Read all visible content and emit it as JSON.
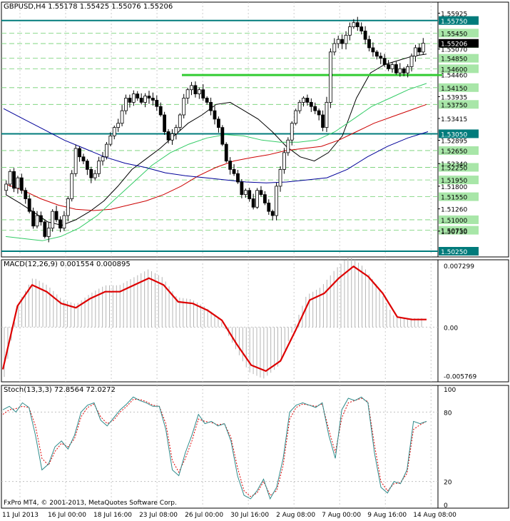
{
  "colors": {
    "background": "#ffffff",
    "border": "#000000",
    "grid": "#c0c0c0",
    "bull_candle": "#ffffff",
    "bear_candle": "#000000",
    "level_line": "#6fcf6f",
    "level_label_bg": "#a8e6a8",
    "teal_line": "#007b7b",
    "resistance": "#33cc33",
    "ma_black": "#000000",
    "ma_red": "#cc0000",
    "ma_green": "#33cc66",
    "ma_blue": "#000099",
    "macd_hist": "#b4b4b4",
    "macd_signal": "#dd0000",
    "stoch_main": "#2e8b8b",
    "stoch_signal": "#dd0000",
    "current_price_bg": "#000000",
    "current_price_fg": "#ffffff"
  },
  "main": {
    "header": "GBPUSD,H4  1.55178 1.55425 1.55076 1.55206",
    "price_axis_labels": [
      "1.55925",
      "1.55070",
      "1.54460",
      "1.53935",
      "1.53415",
      "1.52895",
      "1.52340",
      "1.51800",
      "1.51260",
      "1.50730"
    ],
    "levels": [
      "1.55750",
      "1.55450",
      "1.55200",
      "1.54850",
      "1.54600",
      "1.54150",
      "1.53750",
      "1.53050",
      "1.52650",
      "1.52250",
      "1.51950",
      "1.51550",
      "1.51000",
      "1.50750",
      "1.50250"
    ],
    "highlighted_levels": [
      "1.55750",
      "1.53050",
      "1.50250"
    ],
    "current_price": "1.55206",
    "resistance_level": 1.5445
  },
  "macd": {
    "header": "MACD(12,26,9) 0.001554 0.000895",
    "axis_labels": [
      "0.007299",
      "0.00",
      "-0.005769"
    ]
  },
  "stoch": {
    "header": "Stoch(13,3,3) 72.8564 72.0272",
    "axis_labels": [
      "100",
      "80",
      "20",
      "0"
    ]
  },
  "footer": {
    "copyright": "FxPro MT4, © 2001-2013, MetaQuotes Software Corp."
  },
  "chart_data": {
    "type": "candlestick",
    "symbol": "GBPUSD",
    "timeframe": "H4",
    "x_tick_labels": [
      "11 Jul 2013",
      "16 Jul 00:00",
      "18 Jul 16:00",
      "23 Jul 08:00",
      "26 Jul 00:00",
      "30 Jul 16:00",
      "2 Aug 08:00",
      "7 Aug 00:00",
      "9 Aug 16:00",
      "14 Aug 08:00"
    ],
    "ylim": [
      1.5025,
      1.5595
    ],
    "close": [
      1.5185,
      1.5215,
      1.5175,
      1.52,
      1.517,
      1.515,
      1.512,
      1.5085,
      1.511,
      1.5095,
      1.506,
      1.508,
      1.512,
      1.51,
      1.508,
      1.511,
      1.515,
      1.521,
      1.527,
      1.525,
      1.524,
      1.522,
      1.52,
      1.521,
      1.524,
      1.525,
      1.528,
      1.53,
      1.532,
      1.533,
      1.536,
      1.539,
      1.538,
      1.54,
      1.539,
      1.538,
      1.5395,
      1.539,
      1.5385,
      1.537,
      1.535,
      1.531,
      1.529,
      1.5305,
      1.532,
      1.535,
      1.539,
      1.541,
      1.542,
      1.54,
      1.541,
      1.539,
      1.538,
      1.536,
      1.534,
      1.532,
      1.528,
      1.524,
      1.522,
      1.521,
      1.519,
      1.516,
      1.517,
      1.515,
      1.513,
      1.517,
      1.516,
      1.514,
      1.512,
      1.511,
      1.518,
      1.522,
      1.526,
      1.529,
      1.533,
      1.536,
      1.538,
      1.539,
      1.538,
      1.537,
      1.536,
      1.535,
      1.532,
      1.538,
      1.55,
      1.552,
      1.553,
      1.552,
      1.554,
      1.556,
      1.557,
      1.556,
      1.555,
      1.553,
      1.551,
      1.55,
      1.549,
      1.5485,
      1.547,
      1.546,
      1.547,
      1.545,
      1.546,
      1.545,
      1.5465,
      1.549,
      1.551,
      1.55,
      1.5521
    ],
    "series": [
      {
        "name": "MA black",
        "values": [
          1.516,
          1.514,
          1.5118,
          1.5095,
          1.5087,
          1.51,
          1.512,
          1.5145,
          1.518,
          1.522,
          1.5245,
          1.527,
          1.53,
          1.533,
          1.535,
          1.5375,
          1.538,
          1.536,
          1.534,
          1.531,
          1.5275,
          1.525,
          1.524,
          1.526,
          1.53,
          1.539,
          1.545,
          1.547,
          1.548,
          1.549,
          1.5495
        ]
      },
      {
        "name": "MA red",
        "values": [
          1.5185,
          1.517,
          1.515,
          1.5135,
          1.5125,
          1.5122,
          1.5125,
          1.5135,
          1.5145,
          1.516,
          1.518,
          1.5205,
          1.5225,
          1.524,
          1.5248,
          1.5255,
          1.5265,
          1.527,
          1.5275,
          1.529,
          1.531,
          1.533,
          1.5345,
          1.536,
          1.5375
        ]
      },
      {
        "name": "MA green",
        "values": [
          1.506,
          1.5055,
          1.505,
          1.506,
          1.508,
          1.511,
          1.515,
          1.519,
          1.523,
          1.526,
          1.528,
          1.5295,
          1.5303,
          1.53,
          1.529,
          1.5285,
          1.5285,
          1.529,
          1.531,
          1.534,
          1.537,
          1.539,
          1.541,
          1.5425
        ]
      },
      {
        "name": "MA blue",
        "values": [
          1.5365,
          1.534,
          1.5315,
          1.529,
          1.527,
          1.525,
          1.5235,
          1.5225,
          1.5212,
          1.5205,
          1.52,
          1.5195,
          1.519,
          1.5188,
          1.519,
          1.5195,
          1.52,
          1.522,
          1.525,
          1.5275,
          1.5295,
          1.531
        ]
      }
    ],
    "macd_signal": [
      -0.005,
      0.0025,
      0.005,
      0.0042,
      0.0028,
      0.0023,
      0.0034,
      0.0042,
      0.0042,
      0.005,
      0.0058,
      0.005,
      0.003,
      0.0028,
      0.002,
      0.0008,
      -0.002,
      -0.0045,
      -0.0052,
      -0.004,
      -0.0005,
      0.0032,
      0.004,
      0.0058,
      0.0072,
      0.006,
      0.004,
      0.0012,
      0.0009,
      0.0009
    ],
    "stoch_main": [
      82,
      85,
      80,
      88,
      84,
      60,
      30,
      35,
      50,
      55,
      48,
      60,
      80,
      86,
      88,
      73,
      68,
      75,
      82,
      87,
      93,
      90,
      88,
      85,
      85,
      65,
      30,
      25,
      45,
      60,
      78,
      70,
      72,
      68,
      70,
      55,
      25,
      8,
      5,
      12,
      22,
      5,
      15,
      40,
      80,
      86,
      88,
      86,
      84,
      88,
      60,
      40,
      82,
      92,
      90,
      93,
      88,
      45,
      15,
      10,
      20,
      18,
      30,
      72,
      70,
      72
    ],
    "stoch_signal": [
      78,
      82,
      83,
      85,
      84,
      68,
      40,
      34,
      46,
      53,
      50,
      57,
      76,
      84,
      87,
      76,
      70,
      73,
      80,
      85,
      91,
      91,
      89,
      86,
      85,
      70,
      38,
      28,
      40,
      55,
      74,
      72,
      71,
      69,
      70,
      58,
      32,
      12,
      7,
      10,
      20,
      8,
      12,
      34,
      74,
      84,
      87,
      86,
      85,
      87,
      65,
      45,
      75,
      88,
      90,
      92,
      89,
      52,
      20,
      12,
      18,
      19,
      27,
      65,
      69,
      72
    ]
  }
}
